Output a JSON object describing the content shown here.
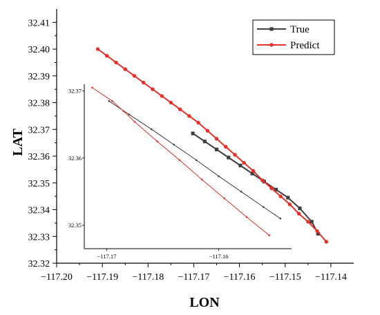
{
  "chart_data": {
    "type": "line",
    "xlabel": "LON",
    "ylabel": "LAT",
    "xlim": [
      -117.2,
      -117.135
    ],
    "ylim": [
      32.32,
      32.415
    ],
    "x_ticks": [
      -117.2,
      -117.19,
      -117.18,
      -117.17,
      -117.16,
      -117.15,
      -117.14
    ],
    "x_tick_labels": [
      "−117.20",
      "−117.19",
      "−117.18",
      "−117.17",
      "−117.16",
      "−117.15",
      "−117.14"
    ],
    "y_ticks": [
      32.32,
      32.33,
      32.34,
      32.35,
      32.36,
      32.37,
      32.38,
      32.39,
      32.4,
      32.41
    ],
    "y_tick_labels": [
      "32.32",
      "32.33",
      "32.34",
      "32.35",
      "32.36",
      "32.37",
      "32.38",
      "32.39",
      "32.40",
      "32.41"
    ],
    "legend_position": "top-right",
    "series": [
      {
        "name": "True",
        "color": "#3f3f3f",
        "marker": "square",
        "x": [
          -117.1702,
          -117.1676,
          -117.165,
          -117.1624,
          -117.1598,
          -117.1572,
          -117.1546,
          -117.152,
          -117.1494,
          -117.1468,
          -117.1442,
          -117.1428
        ],
        "y": [
          32.3685,
          32.3655,
          32.3625,
          32.3595,
          32.3565,
          32.3535,
          32.3505,
          32.3475,
          32.3445,
          32.3405,
          32.3355,
          32.331
        ]
      },
      {
        "name": "Predict",
        "color": "#e8302a",
        "marker": "circle",
        "x": [
          -117.191,
          -117.189,
          -117.187,
          -117.185,
          -117.183,
          -117.181,
          -117.179,
          -117.177,
          -117.175,
          -117.173,
          -117.171,
          -117.169,
          -117.167,
          -117.165,
          -117.163,
          -117.161,
          -117.159,
          -117.157,
          -117.155,
          -117.153,
          -117.151,
          -117.149,
          -117.147,
          -117.145,
          -117.143,
          -117.141
        ],
        "y": [
          32.4,
          32.3975,
          32.395,
          32.3925,
          32.39,
          32.3875,
          32.385,
          32.3825,
          32.38,
          32.3775,
          32.375,
          32.3725,
          32.3695,
          32.3665,
          32.3635,
          32.3605,
          32.3575,
          32.3545,
          32.351,
          32.348,
          32.345,
          32.342,
          32.3385,
          32.3355,
          32.332,
          32.328
        ]
      }
    ],
    "highlight_region": {
      "x": [
        -117.172,
        -117.1535
      ],
      "y": [
        32.3465,
        32.371
      ]
    },
    "inset": {
      "xlim": [
        -117.172,
        -117.1535
      ],
      "ylim": [
        32.3465,
        32.371
      ],
      "x_ticks": [
        -117.17,
        -117.16
      ],
      "x_tick_labels": [
        "−117.17",
        "−117.16"
      ],
      "y_ticks": [
        32.35,
        32.36,
        32.37
      ],
      "y_tick_labels": [
        "32.35",
        "32.36",
        "32.37"
      ],
      "series": [
        {
          "name": "True",
          "color": "#3f3f3f",
          "x": [
            -117.1698,
            -117.168,
            -117.166,
            -117.164,
            -117.162,
            -117.16,
            -117.158,
            -117.156,
            -117.1545
          ],
          "y": [
            32.3685,
            32.3665,
            32.3643,
            32.362,
            32.3597,
            32.3573,
            32.355,
            32.3527,
            32.351
          ]
        },
        {
          "name": "Predict",
          "color": "#e8302a",
          "x": [
            -117.1713,
            -117.1695,
            -117.1685,
            -117.1675,
            -117.1655,
            -117.1635,
            -117.1615,
            -117.1595,
            -117.1575,
            -117.1555
          ],
          "y": [
            32.3705,
            32.3685,
            32.367,
            32.3654,
            32.3625,
            32.3597,
            32.3568,
            32.354,
            32.3512,
            32.3485
          ]
        }
      ]
    }
  }
}
